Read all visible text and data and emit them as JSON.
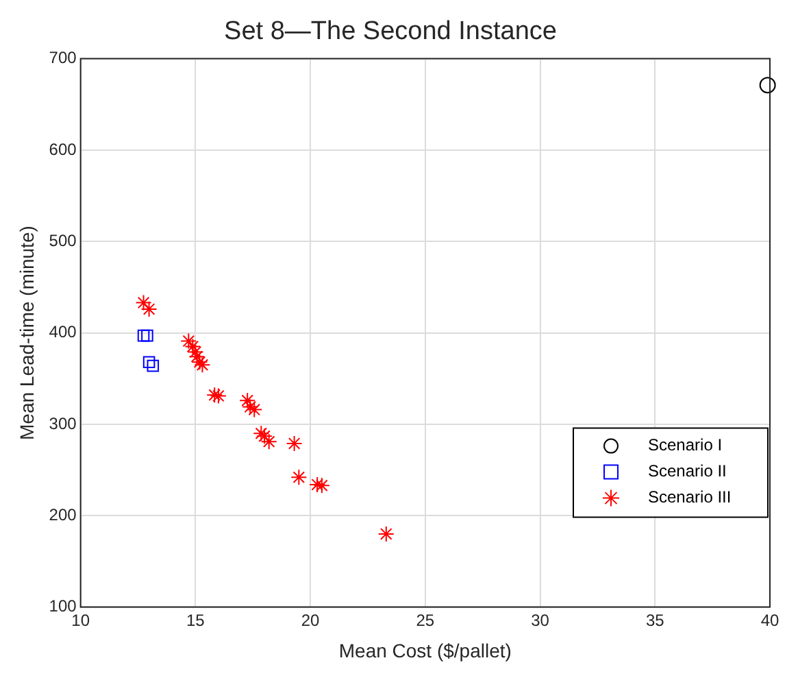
{
  "chart_data": {
    "type": "scatter",
    "title": "Set 8—The Second Instance",
    "xlabel": "Mean Cost ($/pallet)",
    "ylabel": "Mean Lead-time (minute)",
    "xlim": [
      10,
      40
    ],
    "xticks": [
      10,
      15,
      20,
      25,
      30,
      35,
      40
    ],
    "ylim": [
      100,
      700
    ],
    "yticks": [
      100,
      200,
      300,
      400,
      500,
      600,
      700
    ],
    "grid": true,
    "legend": "bottom right",
    "series": [
      {
        "name": "Scenario I",
        "color": "#000000",
        "marker": "circle",
        "x": [
          39.9
        ],
        "values": [
          671
        ]
      },
      {
        "name": "Scenario II",
        "color": "#0000ff",
        "marker": "square",
        "x": [
          12.74,
          12.9,
          12.98,
          13.15
        ],
        "values": [
          397,
          397,
          368,
          364
        ]
      },
      {
        "name": "Scenario III",
        "color": "#ff0000",
        "marker": "cross",
        "x": [
          12.74,
          12.98,
          14.7,
          14.88,
          15.0,
          15.06,
          15.18,
          15.3,
          15.83,
          16.0,
          17.26,
          17.38,
          17.56,
          17.86,
          18.0,
          18.2,
          19.3,
          19.5,
          20.3,
          20.5,
          23.3
        ],
        "values": [
          433,
          426,
          391,
          385,
          379,
          374,
          368,
          365,
          332,
          331,
          326,
          319,
          316,
          290,
          287,
          281,
          279,
          242,
          234,
          233,
          180
        ]
      }
    ]
  }
}
